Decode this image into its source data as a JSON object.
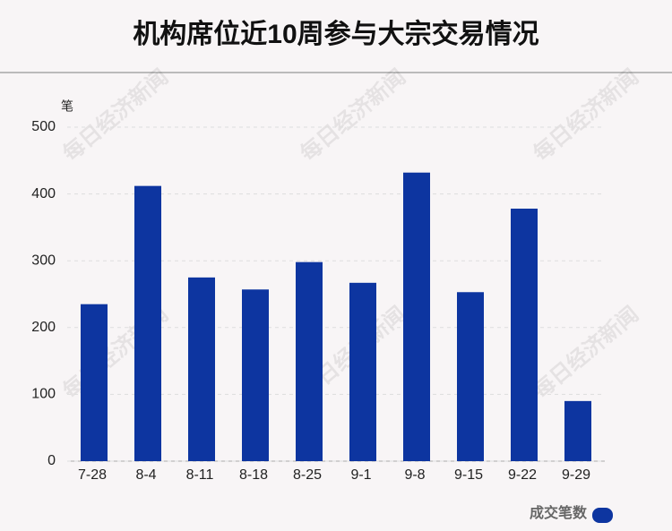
{
  "chart_data": {
    "type": "bar",
    "title": "机构席位近10周参与大宗交易情况",
    "y_axis_label": "笔",
    "watermark": "每日经济新闻",
    "categories": [
      "7-28",
      "8-4",
      "8-11",
      "8-18",
      "8-25",
      "9-1",
      "9-8",
      "9-15",
      "9-22",
      "9-29"
    ],
    "series": [
      {
        "name": "成交笔数",
        "color": "#0d35a0",
        "values": [
          235,
          412,
          275,
          257,
          298,
          267,
          432,
          253,
          378,
          90
        ]
      }
    ],
    "ylim": [
      0,
      500
    ],
    "yticks": [
      0,
      100,
      200,
      300,
      400,
      500
    ],
    "grid": true,
    "legend": "bottom-right"
  }
}
